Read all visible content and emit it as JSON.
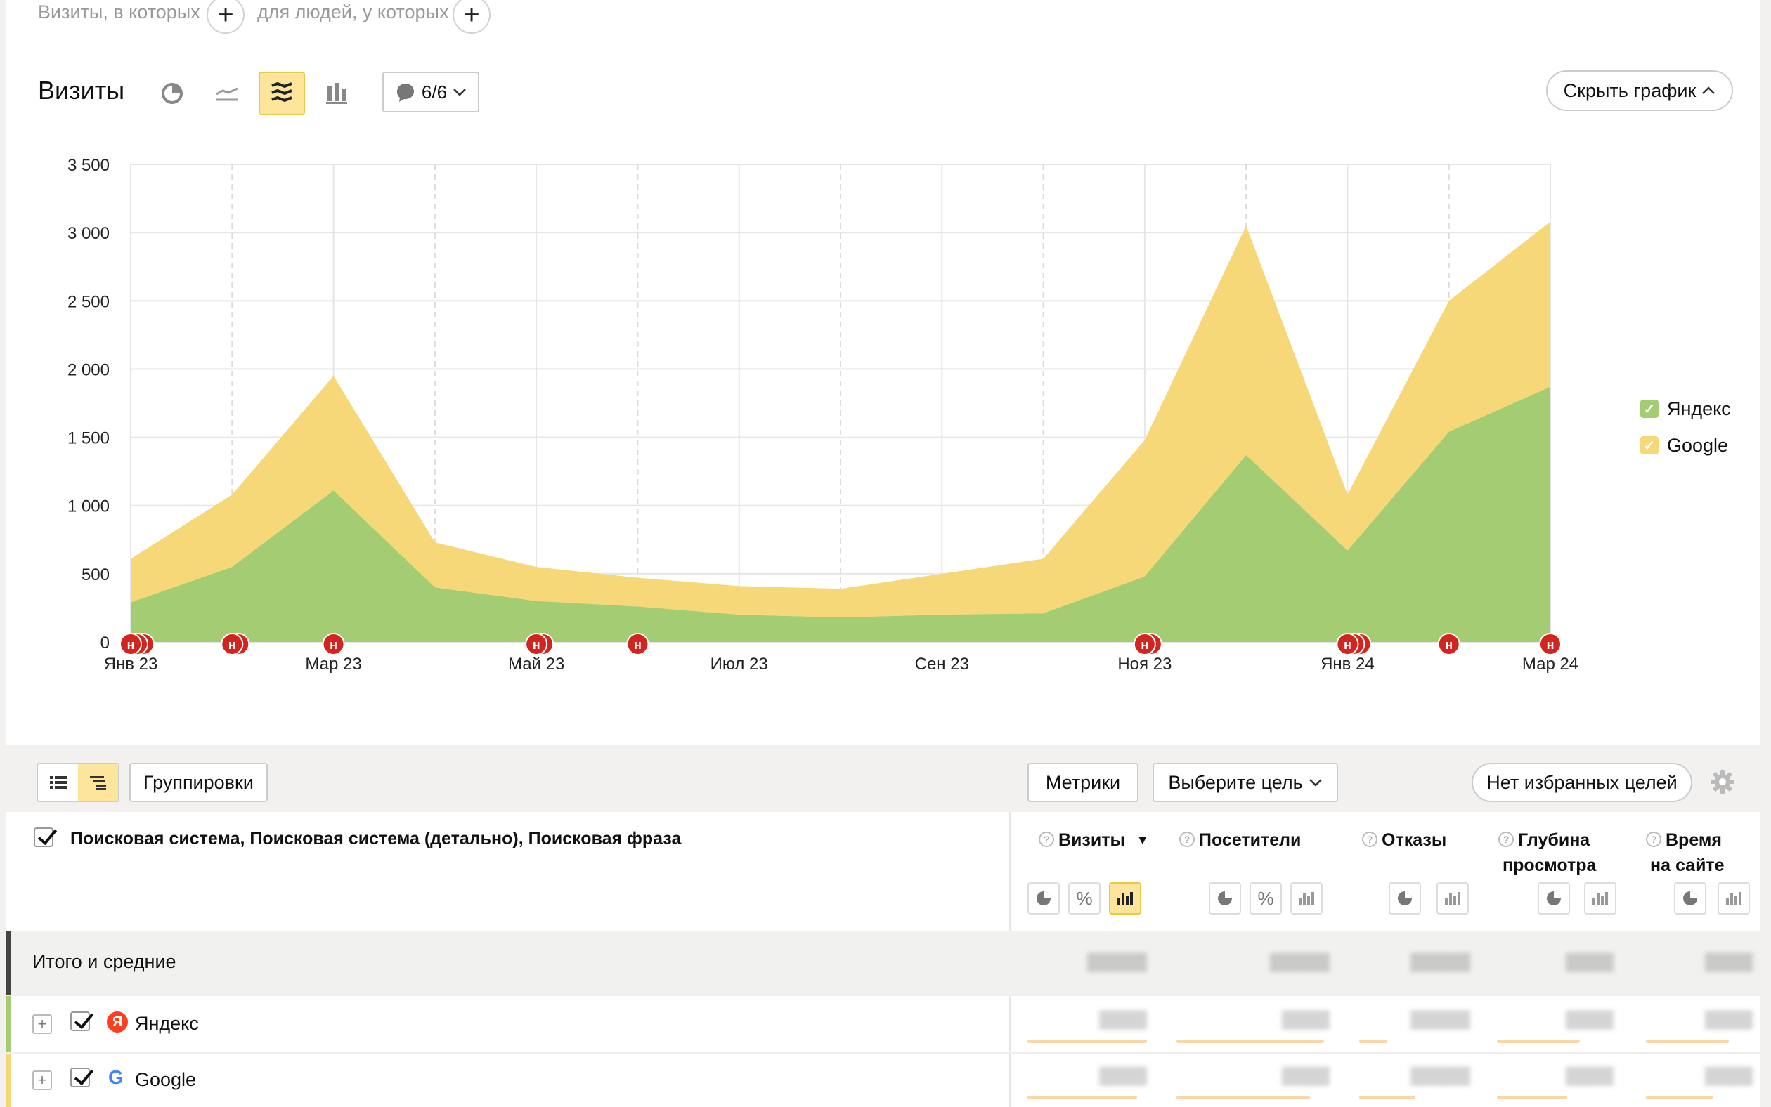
{
  "filters": {
    "visits_label": "Визиты, в которых",
    "people_label": "для людей, у которых",
    "add_symbol": "+"
  },
  "chart_header": {
    "title": "Визиты",
    "notes_count": "6/6",
    "hide_chart": "Скрыть график"
  },
  "icons": {
    "pie": "pie-chart-icon",
    "line": "line-chart-icon",
    "area": "stacked-area-icon",
    "bar": "bar-chart-icon",
    "note": "comment-icon",
    "chevron": "chevron-icon"
  },
  "colors": {
    "yandex": "#a4cc72",
    "google": "#f6d878",
    "note_marker": "#d0261f",
    "active_toggle": "#fde69c"
  },
  "chart_data": {
    "type": "area",
    "stacked": true,
    "ylabel": "",
    "xlabel": "",
    "ylim": [
      0,
      3500
    ],
    "y_ticks": [
      "3 500",
      "3 000",
      "2 500",
      "2 000",
      "1 500",
      "1 000",
      "500",
      "0"
    ],
    "y_tick_values": [
      3500,
      3000,
      2500,
      2000,
      1500,
      1000,
      500,
      0
    ],
    "x_tick_labels": [
      "Янв 23",
      "Мар 23",
      "Май 23",
      "Июл 23",
      "Сен 23",
      "Ноя 23",
      "Янв 24",
      "Мар 24"
    ],
    "x_tick_index": [
      0,
      2,
      4,
      6,
      8,
      10,
      12,
      14
    ],
    "categories": [
      "Янв 23",
      "Фев 23",
      "Мар 23",
      "Апр 23",
      "Май 23",
      "Июн 23",
      "Июл 23",
      "Авг 23",
      "Сен 23",
      "Окт 23",
      "Ноя 23",
      "Дек 23",
      "Янв 24",
      "Фев 24",
      "Мар 24"
    ],
    "series": [
      {
        "name": "Яндекс",
        "values": [
          290,
          550,
          1110,
          400,
          300,
          260,
          200,
          180,
          200,
          210,
          480,
          1370,
          670,
          1540,
          1870
        ]
      },
      {
        "name": "Google",
        "values": [
          320,
          530,
          840,
          330,
          250,
          210,
          210,
          210,
          300,
          400,
          1000,
          1680,
          410,
          960,
          1210
        ]
      }
    ],
    "notes_markers_months": [
      0,
      1,
      2,
      4,
      5,
      10,
      12,
      13,
      14
    ],
    "note_marker_letter": "н",
    "grid": true,
    "legend_position": "right"
  },
  "toolbar": {
    "groupings": "Группировки",
    "metrics": "Метрики",
    "choose_goal": "Выберите цель",
    "no_fav_goals": "Нет избранных целей"
  },
  "table": {
    "dimension_title": "Поисковая система, Поисковая система (детально), Поисковая фраза",
    "columns": [
      {
        "line1": "Визиты",
        "line2": "",
        "sort": "▼"
      },
      {
        "line1": "Посетители",
        "line2": ""
      },
      {
        "line1": "Отказы",
        "line2": ""
      },
      {
        "line1": "Глубина",
        "line2": "просмотра"
      },
      {
        "line1": "Время",
        "line2": "на сайте"
      }
    ],
    "rows": [
      {
        "label": "Итого и средние",
        "values": [
          "▒▒▒▒▒",
          "▒▒▒▒▒",
          "▒▒▒▒▒",
          "▒▒▒▒",
          "▒▒▒▒"
        ]
      },
      {
        "label": "Яндекс",
        "values": [
          "▒▒▒▒",
          "▒▒▒▒",
          "▒▒▒▒▒",
          "▒▒▒▒",
          "▒▒▒▒"
        ]
      },
      {
        "label": "Google",
        "values": [
          "▒▒▒▒",
          "▒▒▒▒",
          "▒▒▒▒▒",
          "▒▒▒▒",
          "▒▒▒▒"
        ]
      }
    ],
    "yandex_logo_letter": "Я",
    "google_logo_letter": "G"
  }
}
